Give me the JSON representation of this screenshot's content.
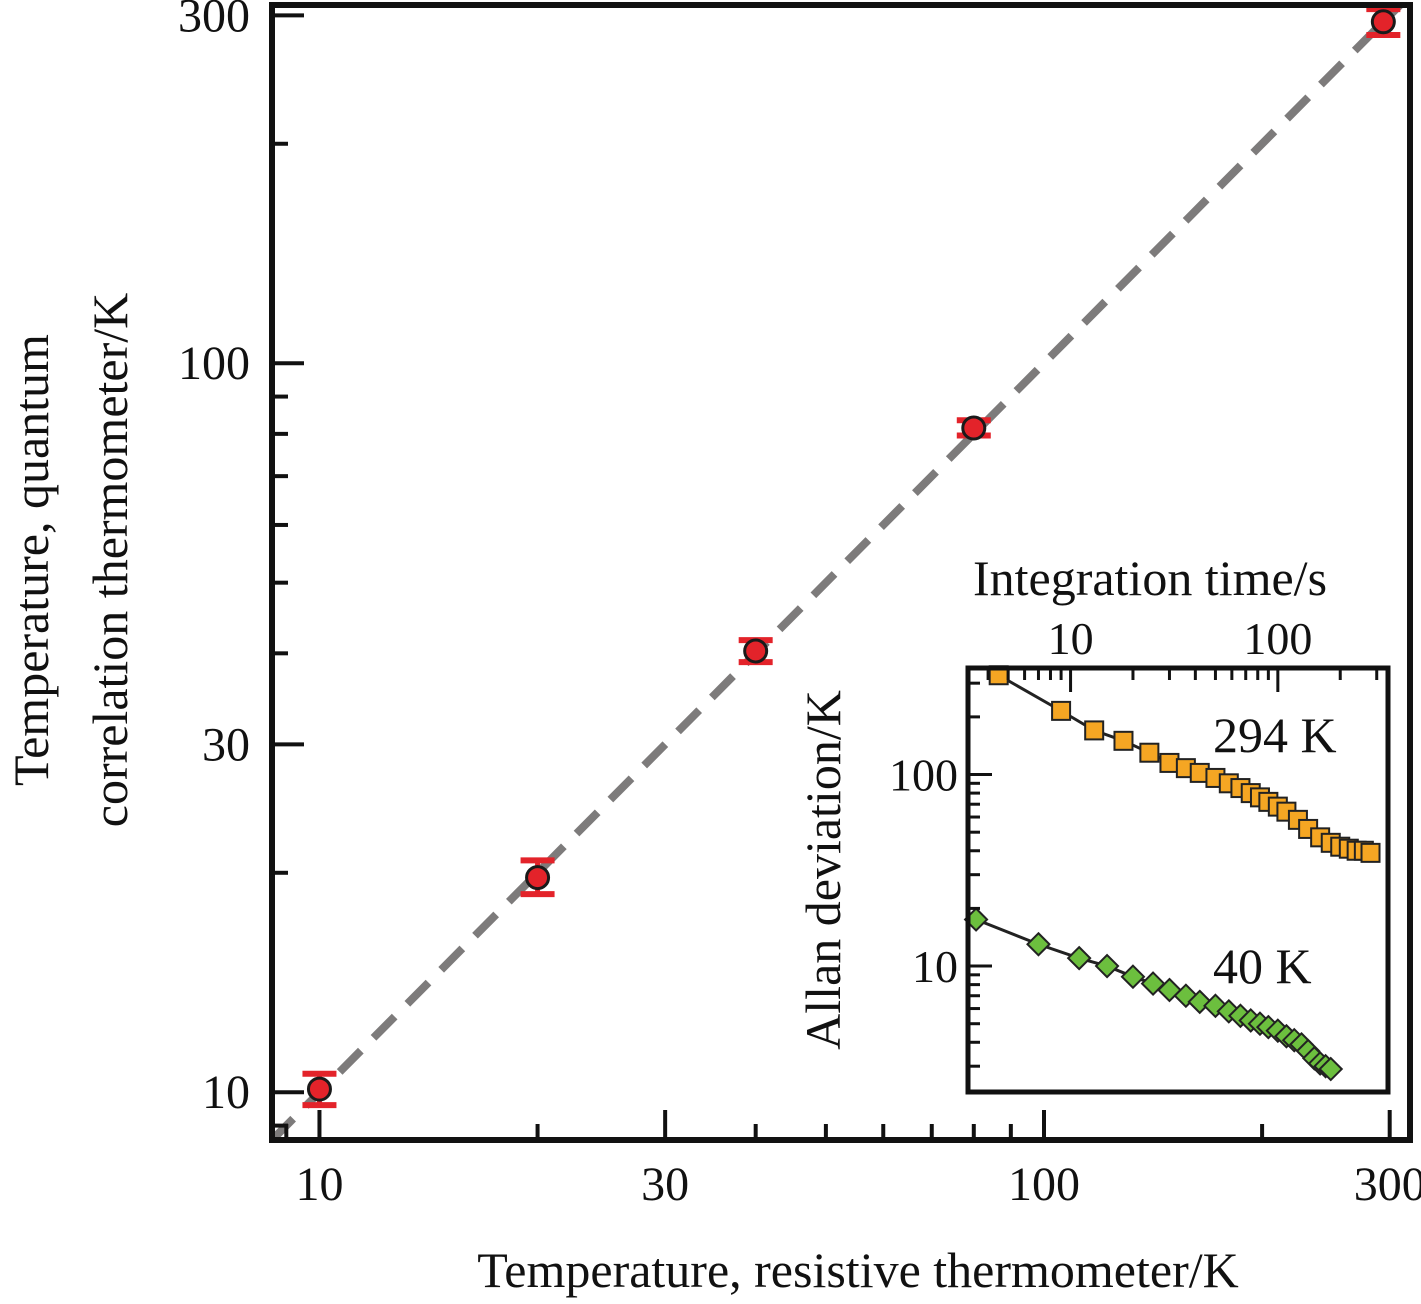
{
  "chart_data": [
    {
      "type": "scatter",
      "xlabel": "Temperature, resistive thermometer/K",
      "ylabel_line1": "Temperature, quantum",
      "ylabel_line2": "correlation thermometer/K",
      "x_scale": "log",
      "y_scale": "log",
      "xlim": [
        8.6,
        320
      ],
      "ylim": [
        8.6,
        310
      ],
      "x_ticks": [
        "10",
        "30",
        "100",
        "300"
      ],
      "y_ticks": [
        "10",
        "30",
        "100",
        "300"
      ],
      "x_tick_values": [
        10,
        30,
        100,
        300
      ],
      "y_tick_values": [
        10,
        30,
        100,
        300
      ],
      "grid": false,
      "reference_line": {
        "style": "dashed",
        "color": "#7d7b7b",
        "from": [
          8.6,
          8.6
        ],
        "to": [
          310,
          310
        ]
      },
      "points": [
        {
          "x": 10,
          "y": 10.1,
          "err_low": 9.6,
          "err_high": 10.6
        },
        {
          "x": 20,
          "y": 19.7,
          "err_low": 18.7,
          "err_high": 20.8
        },
        {
          "x": 40,
          "y": 40.3,
          "err_low": 38.9,
          "err_high": 41.7
        },
        {
          "x": 80,
          "y": 81.5,
          "err_low": 79.6,
          "err_high": 83.5
        },
        {
          "x": 294,
          "y": 294,
          "err_low": 282,
          "err_high": 306
        }
      ],
      "marker_color": "#e3232a",
      "errorbar_color": "#e3232a"
    },
    {
      "type": "line",
      "inset": true,
      "xlabel": "Integration time/s",
      "ylabel": "Allan deviation/K",
      "x_scale": "log",
      "y_scale": "log",
      "xlim": [
        3.2,
        340
      ],
      "ylim": [
        2.2,
        360
      ],
      "x_ticks": [
        "10",
        "100"
      ],
      "y_ticks": [
        "100",
        "10"
      ],
      "x_tick_values": [
        10,
        100
      ],
      "y_tick_values": [
        100,
        10
      ],
      "series": [
        {
          "name": "294 K",
          "marker": "square",
          "color": "#f5a623",
          "x": [
            4.5,
            9,
            13,
            18,
            24,
            30,
            36,
            42,
            50,
            58,
            66,
            74,
            82,
            90,
            100,
            110,
            125,
            140,
            160,
            180,
            200,
            220,
            240,
            260,
            280
          ],
          "y": [
            330,
            215,
            170,
            150,
            130,
            115,
            108,
            102,
            96,
            90,
            85,
            80,
            76,
            72,
            68,
            64,
            58,
            52,
            47,
            44,
            42,
            41,
            40,
            40,
            39
          ]
        },
        {
          "name": "40 K",
          "marker": "diamond",
          "color": "#6cbf3e",
          "x": [
            3.5,
            7,
            11,
            15,
            20,
            25,
            30,
            36,
            42,
            50,
            58,
            66,
            74,
            82,
            90,
            100,
            110,
            120,
            130,
            140,
            150,
            160,
            170,
            180
          ],
          "y": [
            17.5,
            13,
            11,
            10,
            8.8,
            8.1,
            7.5,
            7,
            6.5,
            6.2,
            5.8,
            5.5,
            5.2,
            5,
            4.8,
            4.6,
            4.3,
            4.1,
            3.9,
            3.6,
            3.3,
            3.1,
            3,
            2.9
          ]
        }
      ],
      "fit_color": "#222222"
    }
  ]
}
